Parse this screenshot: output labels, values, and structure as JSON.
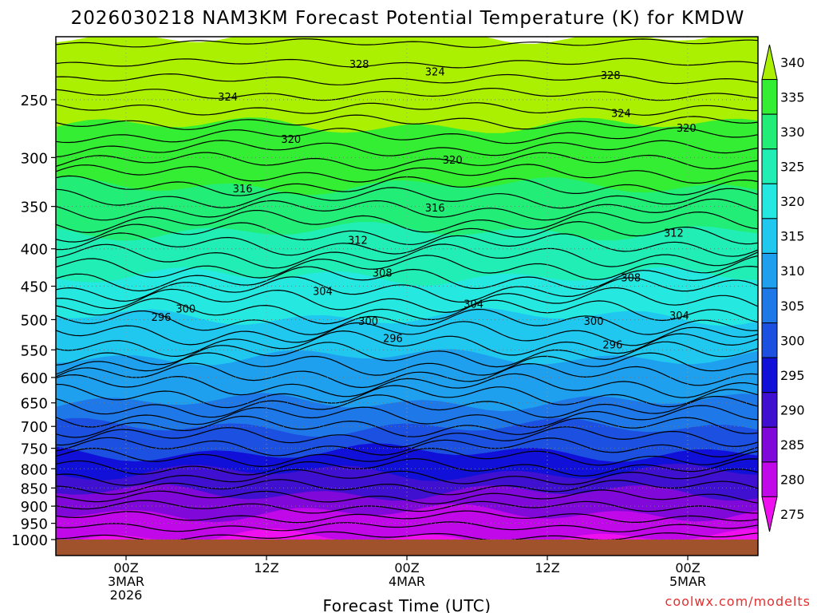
{
  "chart_data": {
    "type": "heatmap",
    "title": "2026030218 NAM3KM Forecast Potential Temperature (K) for KMDW",
    "xlabel": "Forecast Time (UTC)",
    "ylabel": "",
    "credit": "coolwx.com/modelts",
    "y_ticks": [
      "250",
      "300",
      "350",
      "400",
      "450",
      "500",
      "550",
      "600",
      "650",
      "700",
      "750",
      "800",
      "850",
      "900",
      "950",
      "1000"
    ],
    "x_ticks": [
      {
        "time": "00Z",
        "date": "3MAR",
        "year": "2026"
      },
      {
        "time": "12Z",
        "date": "",
        "year": ""
      },
      {
        "time": "00Z",
        "date": "4MAR",
        "year": ""
      },
      {
        "time": "12Z",
        "date": "",
        "year": ""
      },
      {
        "time": "00Z",
        "date": "5MAR",
        "year": ""
      }
    ],
    "colorbar": {
      "levels": [
        340,
        335,
        330,
        325,
        320,
        315,
        310,
        305,
        300,
        295,
        290,
        285,
        280,
        275
      ],
      "labels": [
        "340",
        "335",
        "330",
        "325",
        "320",
        "315",
        "310",
        "305",
        "300",
        "295",
        "290",
        "285",
        "280",
        "275"
      ],
      "colors": [
        "#aaf000",
        "#33ee33",
        "#22ee77",
        "#20eeb5",
        "#25e8e0",
        "#20c8f0",
        "#1ea0ee",
        "#1f78e8",
        "#1b50e0",
        "#1010d8",
        "#4010d0",
        "#8008d8",
        "#c008e8",
        "#ee10ee"
      ],
      "ground_color": "#a0522d"
    },
    "contour_labels": [
      {
        "text": "328",
        "x": 0.432,
        "y": 0.06
      },
      {
        "text": "324",
        "x": 0.54,
        "y": 0.09
      },
      {
        "text": "328",
        "x": 0.79,
        "y": 0.105
      },
      {
        "text": "324",
        "x": 0.245,
        "y": 0.19
      },
      {
        "text": "324",
        "x": 0.805,
        "y": 0.255
      },
      {
        "text": "320",
        "x": 0.335,
        "y": 0.358
      },
      {
        "text": "320",
        "x": 0.898,
        "y": 0.314
      },
      {
        "text": "320",
        "x": 0.565,
        "y": 0.441
      },
      {
        "text": "316",
        "x": 0.266,
        "y": 0.555
      },
      {
        "text": "316",
        "x": 0.54,
        "y": 0.632
      },
      {
        "text": "312",
        "x": 0.43,
        "y": 0.76
      },
      {
        "text": "312",
        "x": 0.88,
        "y": 0.731
      },
      {
        "text": "308",
        "x": 0.465,
        "y": 0.89
      },
      {
        "text": "308",
        "x": 0.819,
        "y": 0.91
      },
      {
        "text": "304",
        "x": 0.38,
        "y": 0.964
      },
      {
        "text": "304",
        "x": 0.595,
        "y": 1.015
      },
      {
        "text": "304",
        "x": 0.888,
        "y": 1.06
      },
      {
        "text": "300",
        "x": 0.185,
        "y": 1.034
      },
      {
        "text": "300",
        "x": 0.445,
        "y": 1.083
      },
      {
        "text": "300",
        "x": 0.766,
        "y": 1.083
      },
      {
        "text": "296",
        "x": 0.15,
        "y": 1.066
      },
      {
        "text": "296",
        "x": 0.48,
        "y": 1.15
      },
      {
        "text": "296",
        "x": 0.793,
        "y": 1.176
      }
    ]
  }
}
